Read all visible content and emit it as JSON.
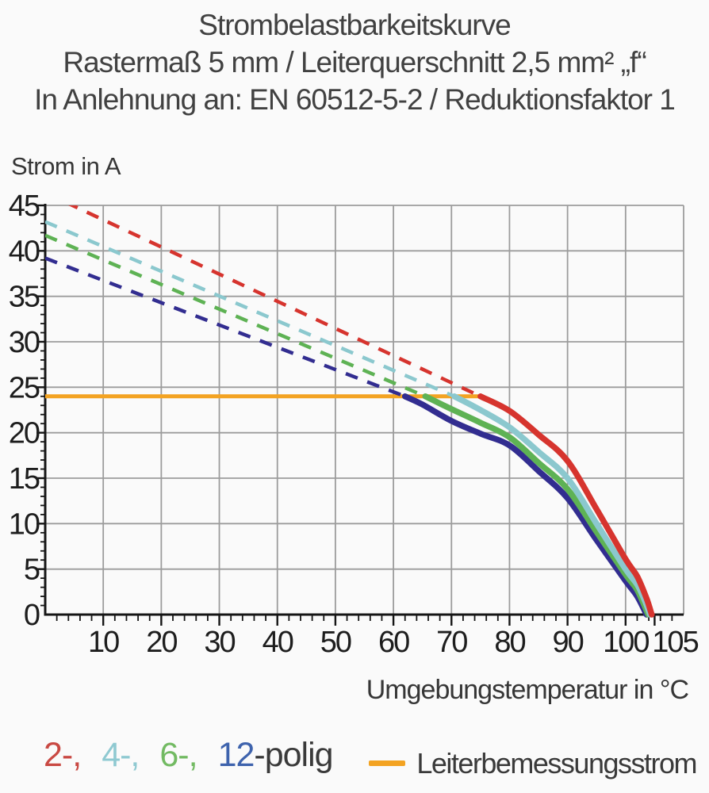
{
  "title": {
    "line1": "Strombelastbarkeitskurve",
    "line2": "Rastermaß 5 mm / Leiterquerschnitt 2,5 mm² „f“",
    "line3": "In Anlehnung an: EN 60512-5-2 / Reduktionsfaktor 1"
  },
  "legend": {
    "poles": [
      {
        "label": "2-,",
        "color": "#C94943"
      },
      {
        "label": "4-,",
        "color": "#8FC9D1"
      },
      {
        "label": "6-,",
        "color": "#72BA62"
      },
      {
        "label": "12",
        "color": "#3E63AD"
      }
    ],
    "poles_suffix": "-polig",
    "reference_label": "Leiterbemessungsstrom"
  },
  "chart_data": {
    "type": "line",
    "title": "Strombelastbarkeitskurve",
    "xlabel": "Umgebungstemperatur in °C",
    "ylabel": "Strom in A",
    "xlim": [
      0,
      110
    ],
    "ylim": [
      0,
      45
    ],
    "x_ticks": [
      10,
      20,
      30,
      40,
      50,
      60,
      70,
      80,
      90,
      100,
      105
    ],
    "y_ticks": [
      0,
      5,
      10,
      15,
      20,
      25,
      30,
      35,
      40,
      45
    ],
    "x_minor_tick_step": 2,
    "y_minor_tick_step": 1,
    "grid": true,
    "grid_color": "#9C9C9C",
    "axis_color": "#151515",
    "style_note": "Curves are dashed above the Leiterbemessungsstrom level (24 A) and solid below it",
    "reference_line": {
      "label": "Leiterbemessungsstrom",
      "y": 24,
      "x_start": 0,
      "x_end": 75,
      "color": "#F3A322"
    },
    "series": [
      {
        "name": "2-polig",
        "poles": 2,
        "color": "#D6342E",
        "dashed_from": [
          0,
          46.4
        ],
        "solid": [
          [
            75,
            24
          ],
          [
            80,
            22.4
          ],
          [
            85,
            19.8
          ],
          [
            90,
            16.9
          ],
          [
            95,
            11.6
          ],
          [
            100,
            6.1
          ],
          [
            102,
            4.2
          ],
          [
            103.6,
            1.8
          ],
          [
            104.5,
            0
          ]
        ]
      },
      {
        "name": "4-polig",
        "poles": 4,
        "color": "#8BC8CE",
        "dashed_from": [
          0,
          43.2
        ],
        "solid": [
          [
            70.5,
            24
          ],
          [
            75,
            22.5
          ],
          [
            80,
            20.6
          ],
          [
            85,
            17.9
          ],
          [
            90,
            15.0
          ],
          [
            95,
            10.0
          ],
          [
            100,
            5.0
          ],
          [
            102,
            3.3
          ],
          [
            103.4,
            1.4
          ],
          [
            104.2,
            0
          ]
        ]
      },
      {
        "name": "6-polig",
        "poles": 6,
        "color": "#5EB254",
        "dashed_from": [
          0,
          41.7
        ],
        "solid": [
          [
            65.5,
            24
          ],
          [
            70,
            22.6
          ],
          [
            75,
            21.1
          ],
          [
            80,
            19.5
          ],
          [
            85,
            16.7
          ],
          [
            90,
            13.8
          ],
          [
            95,
            9.1
          ],
          [
            100,
            4.4
          ],
          [
            102,
            2.7
          ],
          [
            103.9,
            0
          ]
        ]
      },
      {
        "name": "12-polig",
        "poles": 12,
        "color": "#322D90",
        "dashed_from": [
          0,
          39.2
        ],
        "solid": [
          [
            62,
            24
          ],
          [
            65,
            23.1
          ],
          [
            70,
            21.3
          ],
          [
            75,
            19.9
          ],
          [
            80,
            18.6
          ],
          [
            85,
            15.8
          ],
          [
            90,
            12.8
          ],
          [
            95,
            8.2
          ],
          [
            100,
            3.7
          ],
          [
            102,
            2.0
          ],
          [
            103.6,
            0
          ]
        ]
      }
    ]
  }
}
